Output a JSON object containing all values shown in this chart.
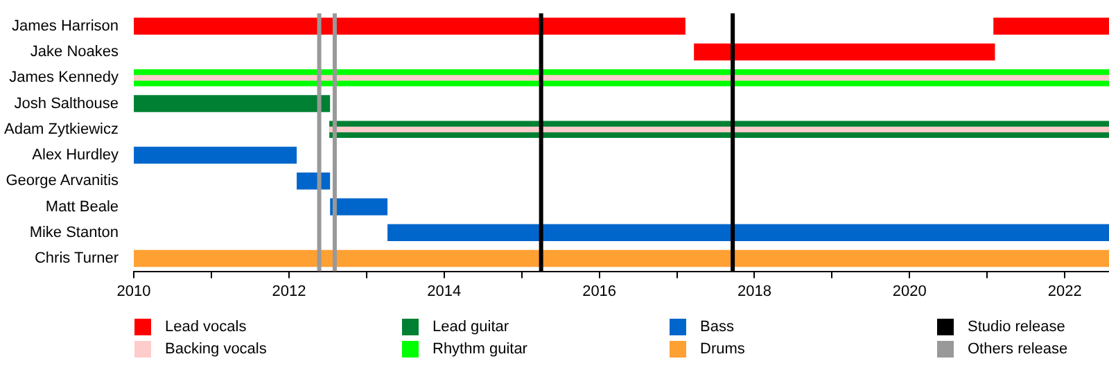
{
  "chart_data": {
    "type": "bar",
    "orientation": "horizontal",
    "categories": [
      "James Harrison",
      "Jake Noakes",
      "James Kennedy",
      "Josh Salthouse",
      "Adam Zytkiewicz",
      "Alex Hurdley",
      "George Arvanitis",
      "Matt Beale",
      "Mike Stanton",
      "Chris Turner"
    ],
    "series": [
      {
        "name": "Lead vocals",
        "color": "#ff0000",
        "base": [
          2010,
          2017.22,
          null,
          null,
          null,
          null,
          null,
          null,
          null,
          null
        ],
        "values": [
          7.11,
          3.88,
          null,
          null,
          null,
          null,
          null,
          null,
          null,
          null
        ]
      },
      {
        "name": "Backing vocals",
        "color": "#ffcccc",
        "base": [
          null,
          null,
          2010,
          null,
          2012.52,
          null,
          null,
          null,
          null,
          null
        ],
        "values": [
          null,
          null,
          12.57,
          null,
          10.05,
          null,
          null,
          null,
          null,
          null
        ]
      },
      {
        "name": "Lead guitar",
        "color": "#008033",
        "base": [
          null,
          null,
          null,
          2010,
          2012.52,
          null,
          null,
          null,
          null,
          null
        ],
        "values": [
          null,
          null,
          null,
          2.53,
          10.05,
          null,
          null,
          null,
          null,
          null
        ]
      },
      {
        "name": "Rhythm guitar",
        "color": "#00ff00",
        "base": [
          null,
          null,
          2010,
          null,
          null,
          null,
          null,
          null,
          null,
          null
        ],
        "values": [
          null,
          null,
          12.57,
          null,
          null,
          null,
          null,
          null,
          null,
          null
        ]
      },
      {
        "name": "Bass",
        "color": "#0066cc",
        "base": [
          null,
          null,
          null,
          null,
          null,
          2010,
          2012.1,
          2012.53,
          2013.27,
          null
        ],
        "values": [
          null,
          null,
          null,
          null,
          null,
          2.1,
          0.43,
          0.74,
          9.3,
          null
        ]
      },
      {
        "name": "Drums",
        "color": "#ffa033",
        "base": [
          null,
          null,
          null,
          null,
          null,
          null,
          null,
          null,
          null,
          2010
        ],
        "values": [
          null,
          null,
          null,
          null,
          null,
          null,
          null,
          null,
          null,
          12.57
        ]
      },
      {
        "color": "#ff0000",
        "base": [
          2021.08,
          null,
          null,
          null,
          null,
          null,
          null,
          null,
          null,
          null
        ],
        "values": [
          1.49,
          null,
          null,
          null,
          null,
          null,
          null,
          null,
          null,
          null
        ]
      }
    ],
    "xlim": [
      2010,
      2022.57
    ],
    "xticks": [
      2010,
      {
        "value": 2011,
        "label": null
      },
      2012,
      {
        "value": 2013,
        "label": null
      },
      2014,
      {
        "value": 2015,
        "label": null
      },
      2016,
      {
        "value": 2017,
        "label": null
      },
      2018,
      {
        "value": 2019,
        "label": null
      },
      2020,
      {
        "value": 2021,
        "label": null
      },
      2022
    ],
    "ref_lines": [
      {
        "axis": "x",
        "value": 2015.25,
        "label": "Studio release",
        "color": "#000000"
      },
      {
        "axis": "x",
        "value": 2017.72,
        "label": null,
        "color": "#000000"
      },
      {
        "axis": "x",
        "value": 2012.39,
        "label": "Others release",
        "color": "#999999"
      },
      {
        "axis": "x",
        "value": 2012.59,
        "label": null,
        "color": "#999999"
      }
    ],
    "grid": false,
    "legend": "bottom"
  }
}
